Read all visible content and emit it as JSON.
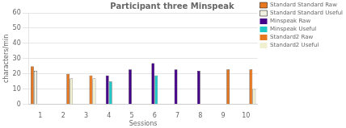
{
  "chart_data": {
    "type": "bar",
    "title": "Participant three Minspeak",
    "x_label": "Sessions",
    "y_label": "characters/min",
    "categories": [
      1,
      2,
      3,
      4,
      5,
      6,
      7,
      8,
      9,
      10
    ],
    "series": [
      {
        "name": "Standard Standard Raw",
        "color": "#E87820",
        "values": [
          25,
          0,
          0,
          0,
          0,
          0,
          0,
          0,
          0,
          0
        ]
      },
      {
        "name": "Standard Standard Useful",
        "color": "#F0F0E0",
        "values": [
          22,
          0,
          0,
          0,
          0,
          0,
          0,
          0,
          0,
          0
        ]
      },
      {
        "name": "Minspeak Raw",
        "color": "#440088",
        "values": [
          0,
          0,
          0,
          19,
          23,
          27,
          23,
          22,
          0,
          0
        ]
      },
      {
        "name": "Minspeak Useful",
        "color": "#20C8C8",
        "values": [
          0,
          0,
          0,
          15,
          0,
          19,
          0,
          0,
          0,
          0
        ]
      },
      {
        "name": "Standard2 Raw",
        "color": "#E87820",
        "values": [
          0,
          20,
          19,
          0,
          0,
          0,
          0,
          0,
          23,
          23
        ]
      },
      {
        "name": "Standard2 Useful",
        "color": "#F0F0D0",
        "values": [
          0,
          17,
          17,
          0,
          0,
          0,
          0,
          0,
          0,
          10
        ]
      }
    ],
    "ylim": [
      0,
      60
    ],
    "yticks": [
      0,
      10,
      20,
      30,
      40,
      50,
      60
    ],
    "grid": true,
    "legend": "right"
  }
}
